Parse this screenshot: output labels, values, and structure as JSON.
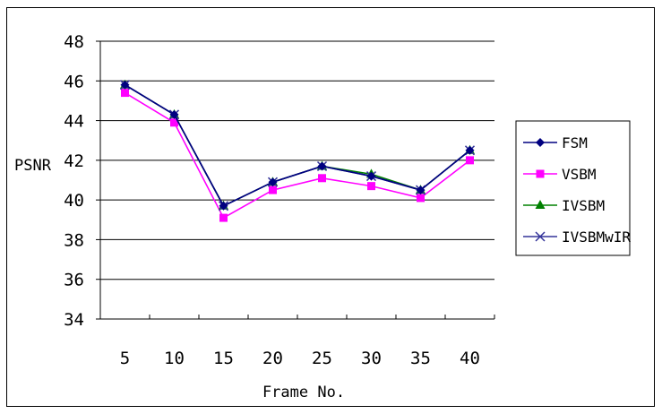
{
  "chart_data": {
    "type": "line",
    "title": "",
    "xlabel": "Frame No.",
    "ylabel": "PSNR",
    "categories": [
      "5",
      "10",
      "15",
      "20",
      "25",
      "30",
      "35",
      "40"
    ],
    "ylim": [
      34,
      48
    ],
    "yticks": [
      "34",
      "36",
      "38",
      "40",
      "42",
      "44",
      "46",
      "48"
    ],
    "grid": "horizontal",
    "legend_position": "right",
    "series": [
      {
        "name": "FSM",
        "color": "#000080",
        "marker": "diamond",
        "values": [
          45.8,
          44.3,
          39.7,
          40.9,
          41.7,
          41.2,
          40.5,
          42.5
        ]
      },
      {
        "name": "VSBM",
        "color": "#ff00ff",
        "marker": "square",
        "values": [
          45.4,
          43.9,
          39.1,
          40.5,
          41.1,
          40.7,
          40.1,
          42.0
        ]
      },
      {
        "name": "IVSBM",
        "color": "#008000",
        "marker": "triangle",
        "values": [
          45.8,
          44.3,
          39.7,
          40.9,
          41.7,
          41.3,
          40.5,
          42.5
        ]
      },
      {
        "name": "IVSBMwIR",
        "color": "#333399",
        "marker": "x",
        "values": [
          45.8,
          44.3,
          39.7,
          40.9,
          41.7,
          41.2,
          40.5,
          42.5
        ]
      }
    ]
  }
}
